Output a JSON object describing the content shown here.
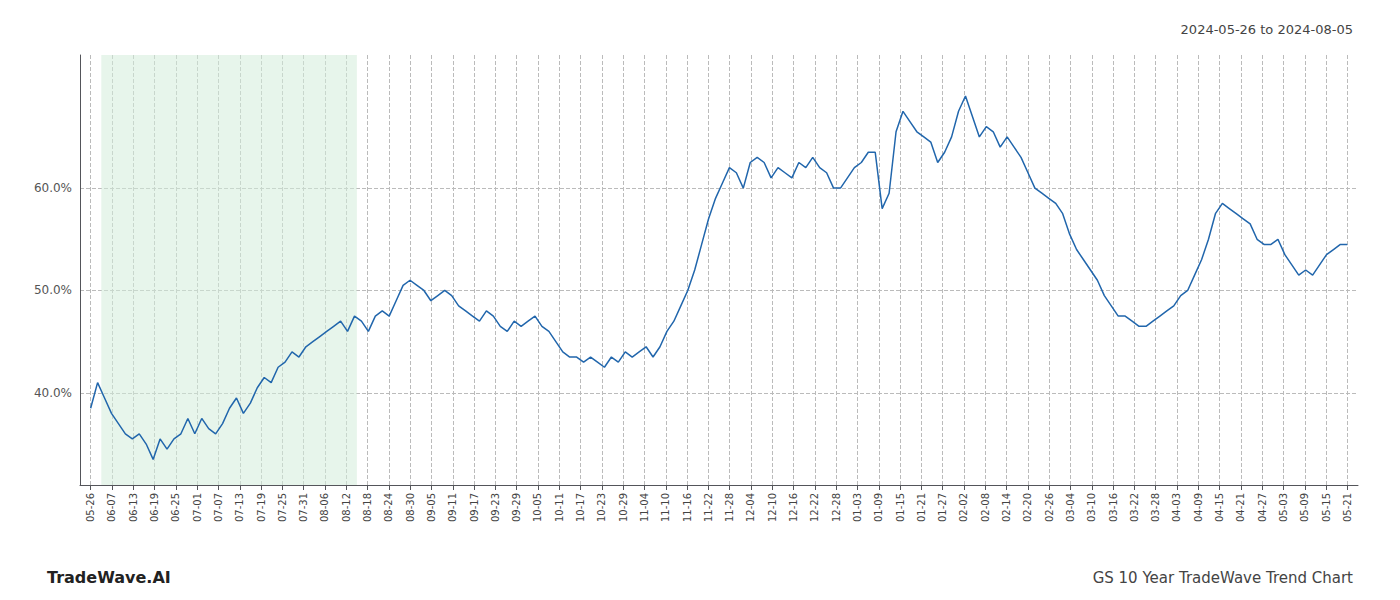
{
  "chart_data": {
    "type": "line",
    "title": "GS 10 Year TradeWave Trend Chart",
    "subtitle": "2024-05-26 to 2024-08-05",
    "annotations": [
      "TradeWave.AI"
    ],
    "color": "#2166ac",
    "grid": true,
    "xlim": [
      -0.5,
      59.5
    ],
    "ylim": [
      31,
      73
    ],
    "yticks": [
      {
        "value": 40.0,
        "label": "40.0%"
      },
      {
        "value": 50.0,
        "label": "50.0%"
      },
      {
        "value": 60.0,
        "label": "60.0%"
      }
    ],
    "xticks": [
      {
        "value": 0,
        "label": "05-26"
      },
      {
        "value": 1,
        "label": "06-07"
      },
      {
        "value": 2,
        "label": "06-13"
      },
      {
        "value": 3,
        "label": "06-19"
      },
      {
        "value": 4,
        "label": "06-25"
      },
      {
        "value": 5,
        "label": "07-01"
      },
      {
        "value": 6,
        "label": "07-07"
      },
      {
        "value": 7,
        "label": "07-13"
      },
      {
        "value": 8,
        "label": "07-19"
      },
      {
        "value": 9,
        "label": "07-25"
      },
      {
        "value": 10,
        "label": "07-31"
      },
      {
        "value": 11,
        "label": "08-06"
      },
      {
        "value": 12,
        "label": "08-12"
      },
      {
        "value": 13,
        "label": "08-18"
      },
      {
        "value": 14,
        "label": "08-24"
      },
      {
        "value": 15,
        "label": "08-30"
      },
      {
        "value": 16,
        "label": "09-05"
      },
      {
        "value": 17,
        "label": "09-11"
      },
      {
        "value": 18,
        "label": "09-17"
      },
      {
        "value": 19,
        "label": "09-23"
      },
      {
        "value": 20,
        "label": "09-29"
      },
      {
        "value": 21,
        "label": "10-05"
      },
      {
        "value": 22,
        "label": "10-11"
      },
      {
        "value": 23,
        "label": "10-17"
      },
      {
        "value": 24,
        "label": "10-23"
      },
      {
        "value": 25,
        "label": "10-29"
      },
      {
        "value": 26,
        "label": "11-04"
      },
      {
        "value": 27,
        "label": "11-10"
      },
      {
        "value": 28,
        "label": "11-16"
      },
      {
        "value": 29,
        "label": "11-22"
      },
      {
        "value": 30,
        "label": "11-28"
      },
      {
        "value": 31,
        "label": "12-04"
      },
      {
        "value": 32,
        "label": "12-10"
      },
      {
        "value": 33,
        "label": "12-16"
      },
      {
        "value": 34,
        "label": "12-22"
      },
      {
        "value": 35,
        "label": "12-28"
      },
      {
        "value": 36,
        "label": "01-03"
      },
      {
        "value": 37,
        "label": "01-09"
      },
      {
        "value": 38,
        "label": "01-15"
      },
      {
        "value": 39,
        "label": "01-21"
      },
      {
        "value": 40,
        "label": "01-27"
      },
      {
        "value": 41,
        "label": "02-02"
      },
      {
        "value": 42,
        "label": "02-08"
      },
      {
        "value": 43,
        "label": "02-14"
      },
      {
        "value": 44,
        "label": "02-20"
      },
      {
        "value": 45,
        "label": "02-26"
      },
      {
        "value": 46,
        "label": "03-04"
      },
      {
        "value": 47,
        "label": "03-10"
      },
      {
        "value": 48,
        "label": "03-16"
      },
      {
        "value": 49,
        "label": "03-22"
      },
      {
        "value": 50,
        "label": "03-28"
      },
      {
        "value": 51,
        "label": "04-03"
      },
      {
        "value": 52,
        "label": "04-09"
      },
      {
        "value": 53,
        "label": "04-15"
      },
      {
        "value": 54,
        "label": "04-21"
      },
      {
        "value": 55,
        "label": "04-27"
      },
      {
        "value": 56,
        "label": "05-03"
      },
      {
        "value": 57,
        "label": "05-09"
      },
      {
        "value": 58,
        "label": "05-15"
      },
      {
        "value": 59,
        "label": "05-21"
      }
    ],
    "highlight": {
      "x": [
        0.5,
        12.5
      ],
      "color": "#d4edda"
    },
    "x": [
      0,
      0.326,
      0.6519,
      0.9779,
      1.3039,
      1.6298,
      1.9558,
      2.2818,
      2.6077,
      2.9337,
      3.2597,
      3.5856,
      3.9116,
      4.2376,
      4.5635,
      4.8895,
      5.2155,
      5.5414,
      5.8674,
      6.1934,
      6.5193,
      6.8453,
      7.1713,
      7.4972,
      7.8232,
      8.1492,
      8.4751,
      8.8011,
      9.1271,
      9.453,
      9.779,
      10.105,
      10.4309,
      10.7569,
      11.0829,
      11.4088,
      11.7348,
      12.0608,
      12.3867,
      12.7127,
      13.0387,
      13.3646,
      13.6906,
      14.0166,
      14.3425,
      14.6685,
      14.9945,
      15.3204,
      15.6464,
      15.9724,
      16.2983,
      16.6243,
      16.9503,
      17.2762,
      17.6022,
      17.9282,
      18.2541,
      18.5801,
      18.9061,
      19.232,
      19.558,
      19.884,
      20.2099,
      20.5359,
      20.8619,
      21.1878,
      21.5138,
      21.8398,
      22.1657,
      22.4917,
      22.8177,
      23.1436,
      23.4696,
      23.7956,
      24.1215,
      24.4475,
      24.7735,
      25.0994,
      25.4254,
      25.7514,
      26.0773,
      26.4033,
      26.7293,
      27.0552,
      27.3812,
      27.7072,
      28.0331,
      28.3591,
      28.6851,
      29.011,
      29.337,
      29.663,
      29.989,
      30.3149,
      30.6409,
      30.9669,
      31.2928,
      31.6188,
      31.9448,
      32.2707,
      32.5967,
      32.9227,
      33.2486,
      33.5746,
      33.9006,
      34.2265,
      34.5525,
      34.8785,
      35.2044,
      35.5304,
      35.8564,
      36.1823,
      36.5083,
      36.8343,
      37.1602,
      37.4862,
      37.8122,
      38.1381,
      38.4641,
      38.7901,
      39.116,
      39.442,
      39.768,
      40.0939,
      40.4199,
      40.7459,
      41.0718,
      41.3978,
      41.7238,
      42.0497,
      42.3757,
      42.7017,
      43.0276,
      43.3536,
      43.6796,
      44.0055,
      44.3315,
      44.6575,
      44.9834,
      45.3094,
      45.6354,
      45.9613,
      46.2873,
      46.6133,
      46.9392,
      47.2652,
      47.5912,
      47.9171,
      48.2431,
      48.5691,
      48.895,
      49.221,
      49.547,
      49.8729,
      50.1989,
      50.5249,
      50.8508,
      51.1768,
      51.5028,
      51.8287,
      52.1547,
      52.4807,
      52.8066,
      53.1326,
      53.4586,
      53.7845,
      54.1105,
      54.4365,
      54.7624,
      55.0884,
      55.4144,
      55.7403,
      56.0663,
      56.3923,
      56.7182,
      57.0442,
      57.3702,
      57.6961,
      58.0221,
      58.3481,
      58.674,
      59
    ],
    "values": [
      38.5,
      41.0,
      39.5,
      38.0,
      37.0,
      36.0,
      35.5,
      36.0,
      35.0,
      33.5,
      35.5,
      34.5,
      35.5,
      36.0,
      37.5,
      36.0,
      37.5,
      36.5,
      36.0,
      37.0,
      38.5,
      39.5,
      38.0,
      39.0,
      40.5,
      41.5,
      41.0,
      42.5,
      43.0,
      44.0,
      43.5,
      44.5,
      45.0,
      45.5,
      46.0,
      46.5,
      47.0,
      46.0,
      47.5,
      47.0,
      46.0,
      47.5,
      48.0,
      47.5,
      49.0,
      50.5,
      51.0,
      50.5,
      50.0,
      49.0,
      49.5,
      50.0,
      49.5,
      48.5,
      48.0,
      47.5,
      47.0,
      48.0,
      47.5,
      46.5,
      46.0,
      47.0,
      46.5,
      47.0,
      47.5,
      46.5,
      46.0,
      45.0,
      44.0,
      43.5,
      43.5,
      43.0,
      43.5,
      43.0,
      42.5,
      43.5,
      43.0,
      44.0,
      43.5,
      44.0,
      44.5,
      43.5,
      44.5,
      46.0,
      47.0,
      48.5,
      50.0,
      52.0,
      54.5,
      57.0,
      59.0,
      60.5,
      62.0,
      61.5,
      60.0,
      62.5,
      63.0,
      62.5,
      61.0,
      62.0,
      61.5,
      61.0,
      62.5,
      62.0,
      63.0,
      62.0,
      61.5,
      60.0,
      60.0,
      61.0,
      62.0,
      62.5,
      63.5,
      63.5,
      58.0,
      59.5,
      65.5,
      67.5,
      66.5,
      65.5,
      65.0,
      64.5,
      62.5,
      63.5,
      65.0,
      67.5,
      69.0,
      67.0,
      65.0,
      66.0,
      65.5,
      64.0,
      65.0,
      64.0,
      63.0,
      61.5,
      60.0,
      59.5,
      59.0,
      58.5,
      57.5,
      55.5,
      54.0,
      53.0,
      52.0,
      51.0,
      49.5,
      48.5,
      47.5,
      47.5,
      47.0,
      46.5,
      46.5,
      47.0,
      47.5,
      48.0,
      48.5,
      49.5,
      50.0,
      51.5,
      53.0,
      55.0,
      57.5,
      58.5,
      58.0,
      57.5,
      57.0,
      56.5,
      55.0,
      54.5,
      54.5,
      55.0,
      53.5,
      52.5,
      51.5,
      52.0,
      51.5,
      52.5,
      53.5,
      54.0,
      54.5,
      54.5
    ]
  }
}
